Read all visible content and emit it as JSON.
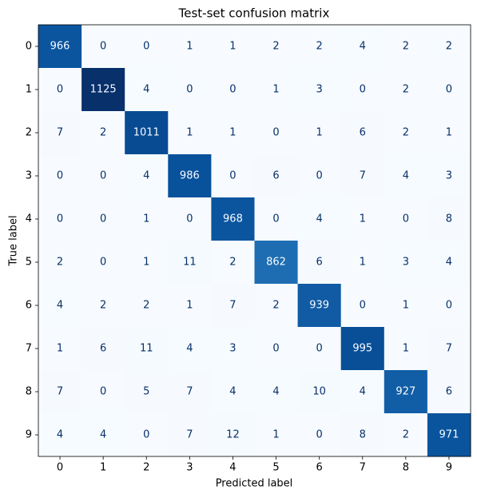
{
  "chart_data": {
    "type": "heatmap",
    "title": "Test-set confusion matrix",
    "xlabel": "Predicted label",
    "ylabel": "True label",
    "x_categories": [
      "0",
      "1",
      "2",
      "3",
      "4",
      "5",
      "6",
      "7",
      "8",
      "9"
    ],
    "y_categories": [
      "0",
      "1",
      "2",
      "3",
      "4",
      "5",
      "6",
      "7",
      "8",
      "9"
    ],
    "colormap": "Blues",
    "values": [
      [
        966,
        0,
        0,
        1,
        1,
        2,
        2,
        4,
        2,
        2
      ],
      [
        0,
        1125,
        4,
        0,
        0,
        1,
        3,
        0,
        2,
        0
      ],
      [
        7,
        2,
        1011,
        1,
        1,
        0,
        1,
        6,
        2,
        1
      ],
      [
        0,
        0,
        4,
        986,
        0,
        6,
        0,
        7,
        4,
        3
      ],
      [
        0,
        0,
        1,
        0,
        968,
        0,
        4,
        1,
        0,
        8
      ],
      [
        2,
        0,
        1,
        11,
        2,
        862,
        6,
        1,
        3,
        4
      ],
      [
        4,
        2,
        2,
        1,
        7,
        2,
        939,
        0,
        1,
        0
      ],
      [
        1,
        6,
        11,
        4,
        3,
        0,
        0,
        995,
        1,
        7
      ],
      [
        7,
        0,
        5,
        7,
        4,
        4,
        10,
        4,
        927,
        6
      ],
      [
        4,
        4,
        0,
        7,
        12,
        1,
        0,
        8,
        2,
        971
      ]
    ]
  }
}
